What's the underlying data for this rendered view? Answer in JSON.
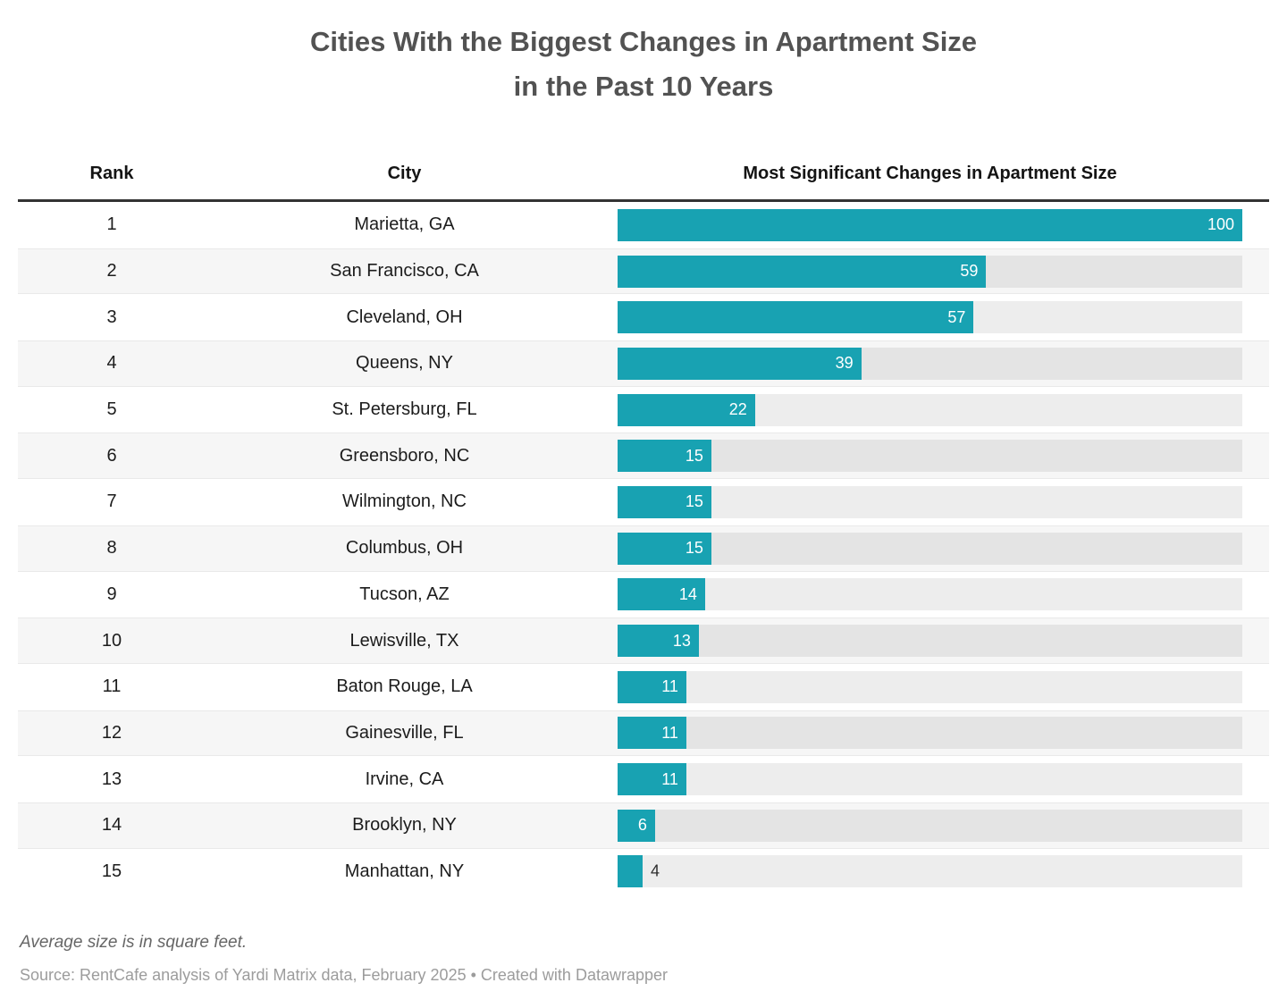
{
  "title": {
    "line1": "Cities With the Biggest Changes in Apartment Size",
    "line2": "in the Past 10 Years"
  },
  "table": {
    "columns": [
      "Rank",
      "City",
      "Most Significant Changes in Apartment Size"
    ],
    "rows": [
      {
        "rank": "1",
        "city": "Marietta, GA",
        "value": 100
      },
      {
        "rank": "2",
        "city": "San Francisco, CA",
        "value": 59
      },
      {
        "rank": "3",
        "city": "Cleveland, OH",
        "value": 57
      },
      {
        "rank": "4",
        "city": "Queens, NY",
        "value": 39
      },
      {
        "rank": "5",
        "city": "St. Petersburg, FL",
        "value": 22
      },
      {
        "rank": "6",
        "city": "Greensboro, NC",
        "value": 15
      },
      {
        "rank": "7",
        "city": "Wilmington, NC",
        "value": 15
      },
      {
        "rank": "8",
        "city": "Columbus, OH",
        "value": 15
      },
      {
        "rank": "9",
        "city": "Tucson, AZ",
        "value": 14
      },
      {
        "rank": "10",
        "city": "Lewisville, TX",
        "value": 13
      },
      {
        "rank": "11",
        "city": "Baton Rouge, LA",
        "value": 11
      },
      {
        "rank": "12",
        "city": "Gainesville, FL",
        "value": 11
      },
      {
        "rank": "13",
        "city": "Irvine, CA",
        "value": 11
      },
      {
        "rank": "14",
        "city": "Brooklyn, NY",
        "value": 6
      },
      {
        "rank": "15",
        "city": "Manhattan, NY",
        "value": 4
      }
    ]
  },
  "footer": {
    "note": "Average size is in square feet.",
    "source": "Source: RentCafe analysis of Yardi Matrix data, February 2025 • Created with Datawrapper"
  },
  "colors": {
    "bar": "#18a2b2",
    "bar_label_inside": "#ffffff",
    "bar_label_outside": "#2d2d2d",
    "stripe_row": "#f6f6f6",
    "header_rule": "#333333",
    "title_text": "#525252"
  },
  "chart_data": {
    "type": "bar",
    "orientation": "horizontal",
    "title": "Cities With the Biggest Changes in Apartment Size in the Past 10 Years",
    "xlabel": "Most Significant Changes in Apartment Size",
    "ylabel": "City",
    "categories": [
      "Marietta, GA",
      "San Francisco, CA",
      "Cleveland, OH",
      "Queens, NY",
      "St. Petersburg, FL",
      "Greensboro, NC",
      "Wilmington, NC",
      "Columbus, OH",
      "Tucson, AZ",
      "Lewisville, TX",
      "Baton Rouge, LA",
      "Gainesville, FL",
      "Irvine, CA",
      "Brooklyn, NY",
      "Manhattan, NY"
    ],
    "ranks": [
      1,
      2,
      3,
      4,
      5,
      6,
      7,
      8,
      9,
      10,
      11,
      12,
      13,
      14,
      15
    ],
    "values": [
      100,
      59,
      57,
      39,
      22,
      15,
      15,
      15,
      14,
      13,
      11,
      11,
      11,
      6,
      4
    ],
    "xlim": [
      0,
      100
    ],
    "grid": false,
    "legend": "none",
    "data_labels": "on",
    "note": "Average size is in square feet.",
    "source": "Source: RentCafe analysis of Yardi Matrix data, February 2025 • Created with Datawrapper"
  }
}
